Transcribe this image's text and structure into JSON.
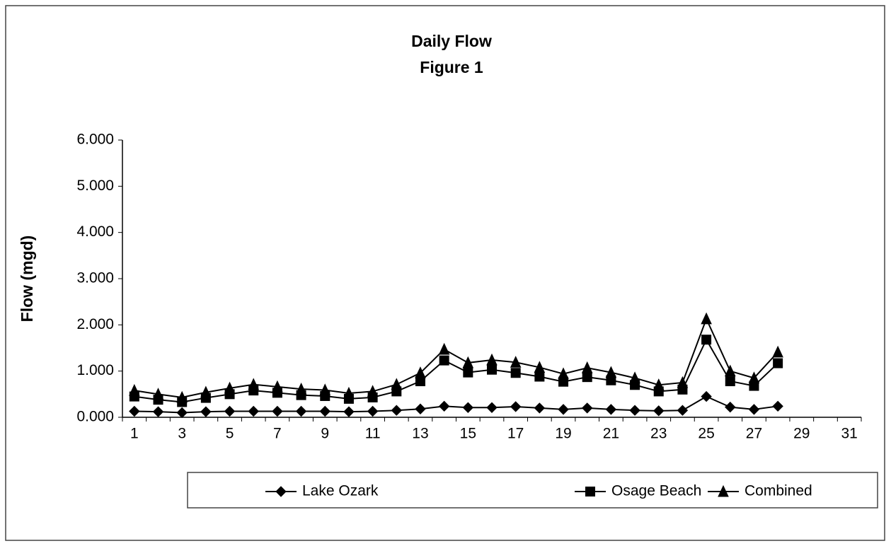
{
  "chart_data": {
    "type": "line",
    "title": "Daily Flow",
    "subtitle": "Figure 1",
    "y_label": "Flow (mgd)",
    "categories": [
      1,
      null,
      3,
      null,
      5,
      null,
      7,
      null,
      9,
      null,
      11,
      null,
      13,
      null,
      15,
      null,
      17,
      null,
      19,
      null,
      21,
      null,
      23,
      null,
      25,
      null,
      27,
      null,
      29,
      null,
      31
    ],
    "series": [
      {
        "name": "Lake Ozark",
        "color": "#000000",
        "marker": "diamond",
        "values": [
          0.13,
          0.12,
          0.1,
          0.12,
          0.13,
          0.13,
          0.13,
          0.13,
          0.13,
          0.12,
          0.13,
          0.15,
          0.18,
          0.24,
          0.21,
          0.21,
          0.23,
          0.2,
          0.17,
          0.2,
          0.17,
          0.15,
          0.14,
          0.15,
          0.45,
          0.22,
          0.17,
          0.24,
          null,
          null,
          null
        ]
      },
      {
        "name": "Osage Beach",
        "color": "#000000",
        "marker": "square",
        "values": [
          0.45,
          0.38,
          0.33,
          0.42,
          0.5,
          0.58,
          0.53,
          0.48,
          0.46,
          0.4,
          0.43,
          0.56,
          0.78,
          1.23,
          0.97,
          1.03,
          0.96,
          0.88,
          0.77,
          0.87,
          0.8,
          0.7,
          0.56,
          0.6,
          1.68,
          0.78,
          0.68,
          1.17,
          null,
          null,
          null
        ]
      },
      {
        "name": "Combined",
        "color": "#000000",
        "marker": "triangle",
        "values": [
          0.58,
          0.5,
          0.43,
          0.54,
          0.63,
          0.71,
          0.66,
          0.61,
          0.59,
          0.52,
          0.56,
          0.71,
          0.96,
          1.47,
          1.18,
          1.24,
          1.19,
          1.08,
          0.94,
          1.07,
          0.97,
          0.85,
          0.7,
          0.75,
          2.13,
          1.0,
          0.85,
          1.41,
          null,
          null,
          null
        ]
      }
    ],
    "ylim": [
      0,
      6
    ],
    "yticks": [
      {
        "value": 0,
        "label": "0.000"
      },
      {
        "value": 1,
        "label": "1.000"
      },
      {
        "value": 2,
        "label": "2.000"
      },
      {
        "value": 3,
        "label": "3.000"
      },
      {
        "value": 4,
        "label": "4.000"
      },
      {
        "value": 5,
        "label": "5.000"
      },
      {
        "value": 6,
        "label": "6.000"
      }
    ],
    "grid": false,
    "legend": "bottom"
  }
}
